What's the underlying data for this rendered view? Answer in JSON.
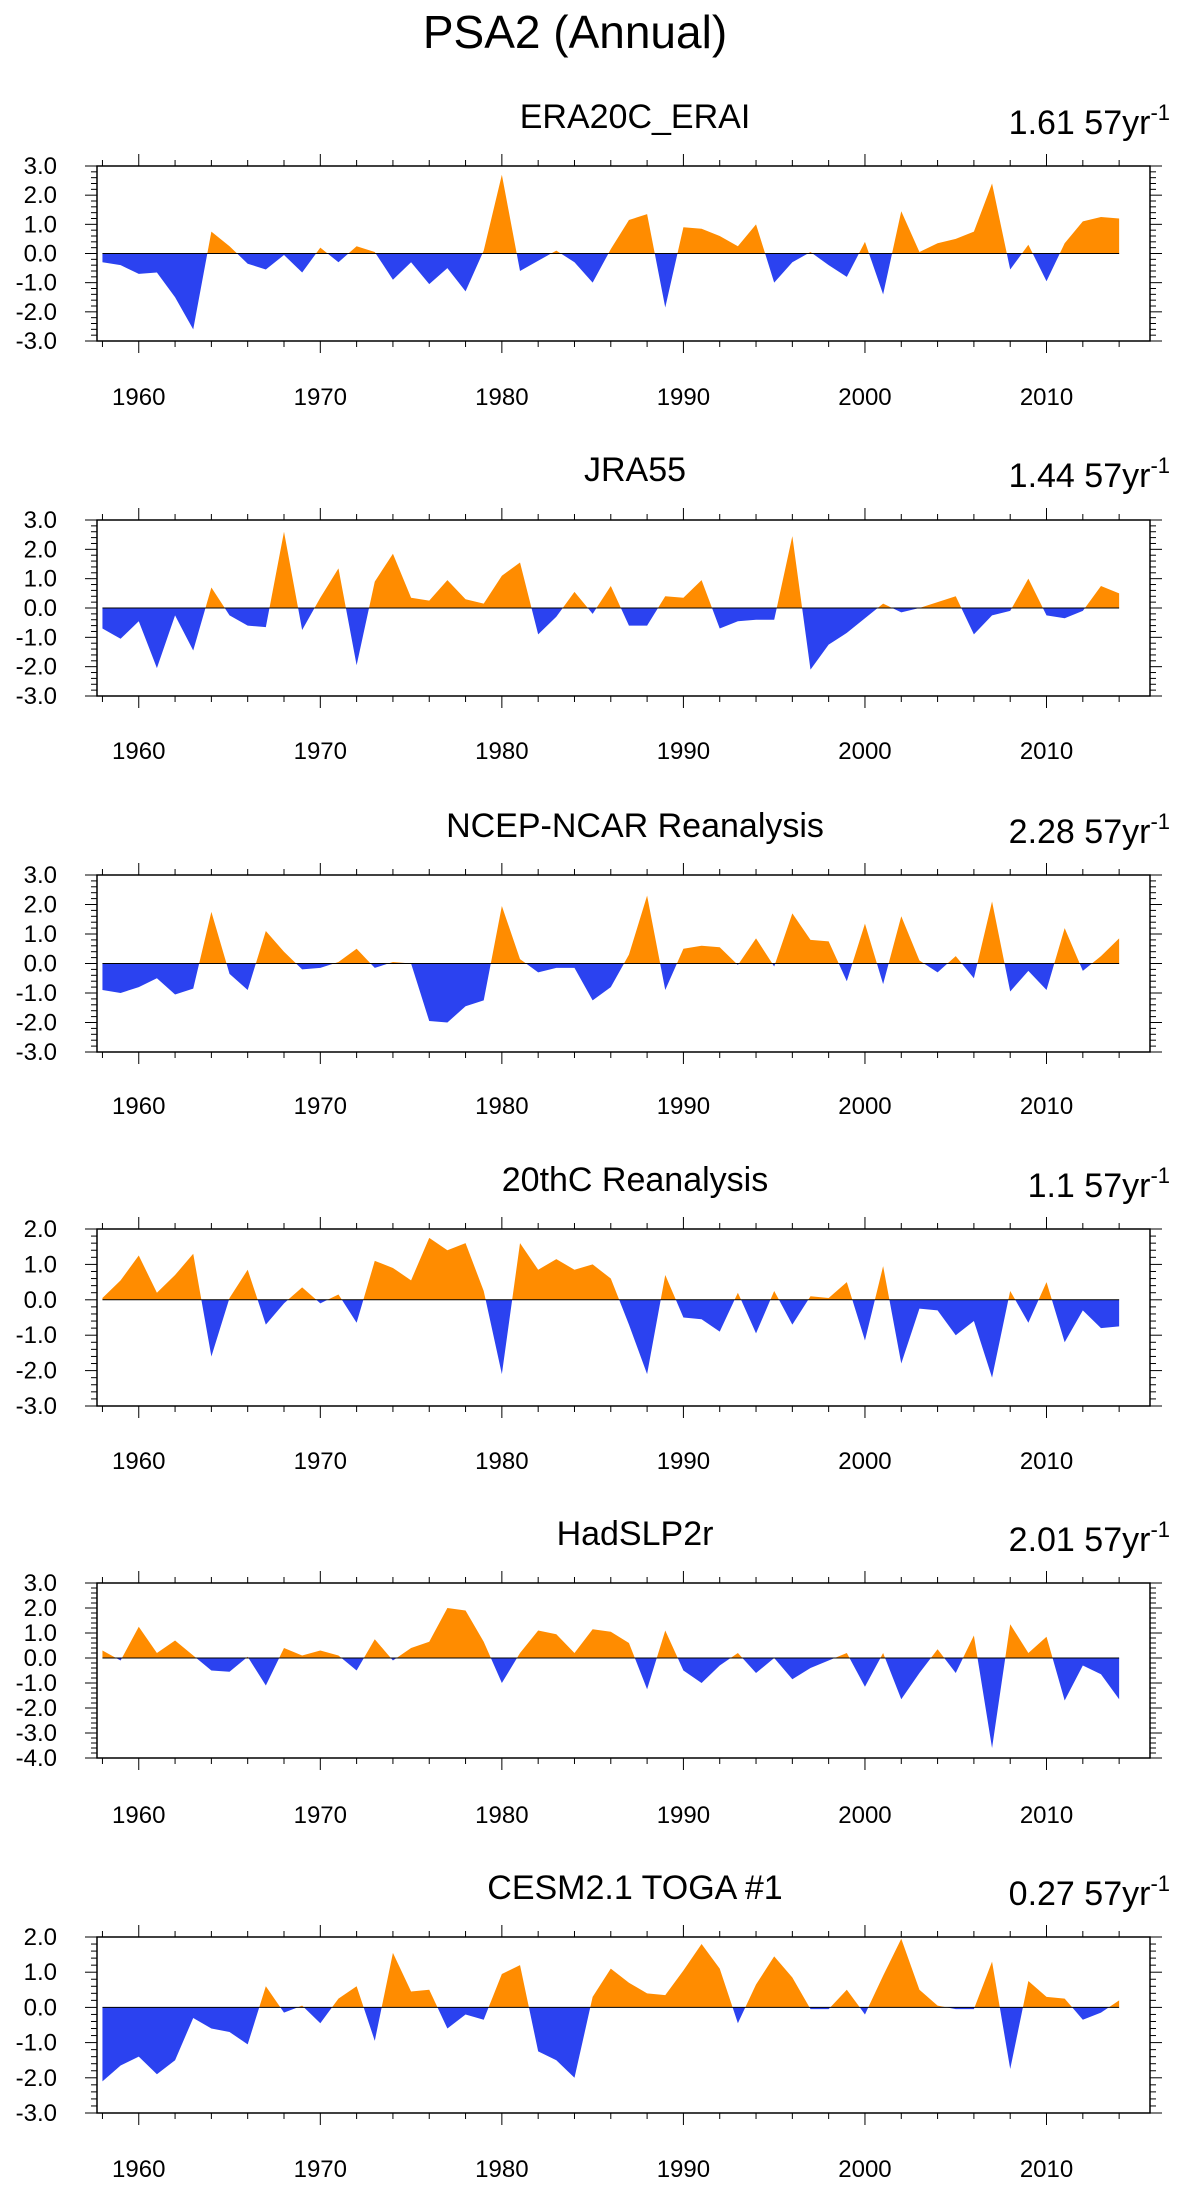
{
  "title": "PSA2 (Annual)",
  "colors": {
    "positive": "#FF8C00",
    "negative": "#2B42F0",
    "axis": "#000000"
  },
  "chart_data": [
    {
      "type": "area",
      "title": "ERA20C_ERAI",
      "trend_value": "1.61",
      "trend_unit": "57yr",
      "trend_exp": "-1",
      "x": [
        1958,
        1959,
        1960,
        1961,
        1962,
        1963,
        1964,
        1965,
        1966,
        1967,
        1968,
        1969,
        1970,
        1971,
        1972,
        1973,
        1974,
        1975,
        1976,
        1977,
        1978,
        1979,
        1980,
        1981,
        1982,
        1983,
        1984,
        1985,
        1986,
        1987,
        1988,
        1989,
        1990,
        1991,
        1992,
        1993,
        1994,
        1995,
        1996,
        1997,
        1998,
        1999,
        2000,
        2001,
        2002,
        2003,
        2004,
        2005,
        2006,
        2007,
        2008,
        2009,
        2010,
        2011,
        2012,
        2013,
        2014
      ],
      "values": [
        -0.3,
        -0.4,
        -0.7,
        -0.65,
        -1.5,
        -2.6,
        0.75,
        0.25,
        -0.35,
        -0.55,
        -0.05,
        -0.65,
        0.2,
        -0.3,
        0.25,
        0.05,
        -0.9,
        -0.3,
        -1.05,
        -0.5,
        -1.3,
        0.1,
        2.7,
        -0.6,
        -0.25,
        0.1,
        -0.3,
        -1.0,
        0.15,
        1.15,
        1.35,
        -1.85,
        0.9,
        0.85,
        0.6,
        0.25,
        1.0,
        -1.0,
        -0.3,
        0.05,
        -0.4,
        -0.8,
        0.4,
        -1.4,
        1.45,
        0.05,
        0.35,
        0.5,
        0.75,
        2.4,
        -0.55,
        0.3,
        -0.95,
        0.35,
        1.1,
        1.25,
        1.2
      ],
      "ylim": [
        -3.0,
        3.0
      ],
      "yticks": [
        "3.0",
        "2.0",
        "1.0",
        "0.0",
        "-1.0",
        "-2.0",
        "-3.0"
      ],
      "xticks": [
        "1960",
        "1970",
        "1980",
        "1990",
        "2000",
        "2010"
      ]
    },
    {
      "type": "area",
      "title": "JRA55",
      "trend_value": "1.44",
      "trend_unit": "57yr",
      "trend_exp": "-1",
      "x": [
        1958,
        1959,
        1960,
        1961,
        1962,
        1963,
        1964,
        1965,
        1966,
        1967,
        1968,
        1969,
        1970,
        1971,
        1972,
        1973,
        1974,
        1975,
        1976,
        1977,
        1978,
        1979,
        1980,
        1981,
        1982,
        1983,
        1984,
        1985,
        1986,
        1987,
        1988,
        1989,
        1990,
        1991,
        1992,
        1993,
        1994,
        1995,
        1996,
        1997,
        1998,
        1999,
        2000,
        2001,
        2002,
        2003,
        2004,
        2005,
        2006,
        2007,
        2008,
        2009,
        2010,
        2011,
        2012,
        2013,
        2014
      ],
      "values": [
        -0.7,
        -1.05,
        -0.45,
        -2.05,
        -0.25,
        -1.45,
        0.7,
        -0.25,
        -0.6,
        -0.65,
        2.6,
        -0.75,
        0.35,
        1.35,
        -1.95,
        0.9,
        1.85,
        0.35,
        0.25,
        0.95,
        0.3,
        0.15,
        1.1,
        1.55,
        -0.9,
        -0.3,
        0.55,
        -0.2,
        0.75,
        -0.6,
        -0.6,
        0.4,
        0.35,
        0.95,
        -0.7,
        -0.45,
        -0.4,
        -0.4,
        2.45,
        -2.1,
        -1.25,
        -0.85,
        -0.35,
        0.15,
        -0.15,
        0.0,
        0.2,
        0.4,
        -0.9,
        -0.25,
        -0.1,
        1.0,
        -0.25,
        -0.35,
        -0.1,
        0.75,
        0.5
      ],
      "ylim": [
        -3.0,
        3.0
      ],
      "yticks": [
        "3.0",
        "2.0",
        "1.0",
        "0.0",
        "-1.0",
        "-2.0",
        "-3.0"
      ],
      "xticks": [
        "1960",
        "1970",
        "1980",
        "1990",
        "2000",
        "2010"
      ]
    },
    {
      "type": "area",
      "title": "NCEP-NCAR Reanalysis",
      "trend_value": "2.28",
      "trend_unit": "57yr",
      "trend_exp": "-1",
      "x": [
        1958,
        1959,
        1960,
        1961,
        1962,
        1963,
        1964,
        1965,
        1966,
        1967,
        1968,
        1969,
        1970,
        1971,
        1972,
        1973,
        1974,
        1975,
        1976,
        1977,
        1978,
        1979,
        1980,
        1981,
        1982,
        1983,
        1984,
        1985,
        1986,
        1987,
        1988,
        1989,
        1990,
        1991,
        1992,
        1993,
        1994,
        1995,
        1996,
        1997,
        1998,
        1999,
        2000,
        2001,
        2002,
        2003,
        2004,
        2005,
        2006,
        2007,
        2008,
        2009,
        2010,
        2011,
        2012,
        2013,
        2014
      ],
      "values": [
        -0.9,
        -1.0,
        -0.8,
        -0.5,
        -1.05,
        -0.85,
        1.75,
        -0.35,
        -0.9,
        1.1,
        0.4,
        -0.2,
        -0.15,
        0.05,
        0.5,
        -0.15,
        0.05,
        0.0,
        -1.95,
        -2.0,
        -1.45,
        -1.25,
        1.95,
        0.15,
        -0.3,
        -0.15,
        -0.15,
        -1.25,
        -0.8,
        0.3,
        2.3,
        -0.9,
        0.5,
        0.6,
        0.55,
        -0.05,
        0.85,
        -0.1,
        1.7,
        0.8,
        0.75,
        -0.6,
        1.35,
        -0.7,
        1.6,
        0.1,
        -0.3,
        0.25,
        -0.5,
        2.1,
        -0.95,
        -0.25,
        -0.9,
        1.2,
        -0.25,
        0.25,
        0.85
      ],
      "ylim": [
        -3.0,
        3.0
      ],
      "yticks": [
        "3.0",
        "2.0",
        "1.0",
        "0.0",
        "-1.0",
        "-2.0",
        "-3.0"
      ],
      "xticks": [
        "1960",
        "1970",
        "1980",
        "1990",
        "2000",
        "2010"
      ]
    },
    {
      "type": "area",
      "title": "20thC Reanalysis",
      "trend_value": "1.1",
      "trend_unit": "57yr",
      "trend_exp": "-1",
      "x": [
        1958,
        1959,
        1960,
        1961,
        1962,
        1963,
        1964,
        1965,
        1966,
        1967,
        1968,
        1969,
        1970,
        1971,
        1972,
        1973,
        1974,
        1975,
        1976,
        1977,
        1978,
        1979,
        1980,
        1981,
        1982,
        1983,
        1984,
        1985,
        1986,
        1987,
        1988,
        1989,
        1990,
        1991,
        1992,
        1993,
        1994,
        1995,
        1996,
        1997,
        1998,
        1999,
        2000,
        2001,
        2002,
        2003,
        2004,
        2005,
        2006,
        2007,
        2008,
        2009,
        2010,
        2011,
        2012,
        2013,
        2014
      ],
      "values": [
        0.05,
        0.55,
        1.25,
        0.2,
        0.7,
        1.3,
        -1.6,
        0.05,
        0.85,
        -0.7,
        -0.1,
        0.35,
        -0.1,
        0.15,
        -0.65,
        1.1,
        0.9,
        0.55,
        1.75,
        1.4,
        1.6,
        0.25,
        -2.1,
        1.6,
        0.85,
        1.15,
        0.85,
        1.0,
        0.6,
        -0.7,
        -2.1,
        0.7,
        -0.5,
        -0.55,
        -0.9,
        0.2,
        -0.95,
        0.25,
        -0.7,
        0.1,
        0.05,
        0.5,
        -1.15,
        0.95,
        -1.8,
        -0.25,
        -0.3,
        -1.0,
        -0.6,
        -2.2,
        0.25,
        -0.65,
        0.5,
        -1.2,
        -0.3,
        -0.8,
        -0.75
      ],
      "ylim": [
        -3.0,
        2.0
      ],
      "yticks": [
        "2.0",
        "1.0",
        "0.0",
        "-1.0",
        "-2.0",
        "-3.0"
      ],
      "xticks": [
        "1960",
        "1970",
        "1980",
        "1990",
        "2000",
        "2010"
      ]
    },
    {
      "type": "area",
      "title": "HadSLP2r",
      "trend_value": "2.01",
      "trend_unit": "57yr",
      "trend_exp": "-1",
      "x": [
        1958,
        1959,
        1960,
        1961,
        1962,
        1963,
        1964,
        1965,
        1966,
        1967,
        1968,
        1969,
        1970,
        1971,
        1972,
        1973,
        1974,
        1975,
        1976,
        1977,
        1978,
        1979,
        1980,
        1981,
        1982,
        1983,
        1984,
        1985,
        1986,
        1987,
        1988,
        1989,
        1990,
        1991,
        1992,
        1993,
        1994,
        1995,
        1996,
        1997,
        1998,
        1999,
        2000,
        2001,
        2002,
        2003,
        2004,
        2005,
        2006,
        2007,
        2008,
        2009,
        2010,
        2011,
        2012,
        2013,
        2014
      ],
      "values": [
        0.3,
        -0.1,
        1.25,
        0.2,
        0.7,
        0.1,
        -0.5,
        -0.55,
        0.05,
        -1.1,
        0.4,
        0.1,
        0.3,
        0.1,
        -0.5,
        0.75,
        -0.1,
        0.4,
        0.65,
        2.0,
        1.9,
        0.65,
        -1.0,
        0.2,
        1.1,
        0.95,
        0.2,
        1.15,
        1.05,
        0.6,
        -1.25,
        1.1,
        -0.5,
        -1.0,
        -0.3,
        0.2,
        -0.6,
        0.0,
        -0.85,
        -0.4,
        -0.1,
        0.2,
        -1.15,
        0.2,
        -1.65,
        -0.6,
        0.35,
        -0.6,
        0.9,
        -3.6,
        1.35,
        0.2,
        0.85,
        -1.7,
        -0.3,
        -0.65,
        -1.65
      ],
      "ylim": [
        -4.0,
        3.0
      ],
      "yticks": [
        "3.0",
        "2.0",
        "1.0",
        "0.0",
        "-1.0",
        "-2.0",
        "-3.0",
        "-4.0"
      ],
      "xticks": [
        "1960",
        "1970",
        "1980",
        "1990",
        "2000",
        "2010"
      ]
    },
    {
      "type": "area",
      "title": "CESM2.1 TOGA #1",
      "trend_value": "0.27",
      "trend_unit": "57yr",
      "trend_exp": "-1",
      "x": [
        1958,
        1959,
        1960,
        1961,
        1962,
        1963,
        1964,
        1965,
        1966,
        1967,
        1968,
        1969,
        1970,
        1971,
        1972,
        1973,
        1974,
        1975,
        1976,
        1977,
        1978,
        1979,
        1980,
        1981,
        1982,
        1983,
        1984,
        1985,
        1986,
        1987,
        1988,
        1989,
        1990,
        1991,
        1992,
        1993,
        1994,
        1995,
        1996,
        1997,
        1998,
        1999,
        2000,
        2001,
        2002,
        2003,
        2004,
        2005,
        2006,
        2007,
        2008,
        2009,
        2010,
        2011,
        2012,
        2013,
        2014
      ],
      "values": [
        -2.1,
        -1.65,
        -1.4,
        -1.9,
        -1.5,
        -0.3,
        -0.6,
        -0.7,
        -1.05,
        0.6,
        -0.15,
        0.05,
        -0.45,
        0.25,
        0.6,
        -0.95,
        1.55,
        0.45,
        0.5,
        -0.6,
        -0.2,
        -0.35,
        0.95,
        1.2,
        -1.25,
        -1.5,
        -2.0,
        0.3,
        1.1,
        0.7,
        0.4,
        0.35,
        1.05,
        1.8,
        1.1,
        -0.45,
        0.65,
        1.45,
        0.85,
        -0.05,
        -0.05,
        0.5,
        -0.2,
        0.9,
        1.95,
        0.5,
        0.05,
        -0.05,
        -0.05,
        1.3,
        -1.75,
        0.75,
        0.3,
        0.25,
        -0.35,
        -0.15,
        0.2
      ],
      "ylim": [
        -3.0,
        2.0
      ],
      "yticks": [
        "2.0",
        "1.0",
        "0.0",
        "-1.0",
        "-2.0",
        "-3.0"
      ],
      "xticks": [
        "1960",
        "1970",
        "1980",
        "1990",
        "2000",
        "2010"
      ]
    }
  ]
}
